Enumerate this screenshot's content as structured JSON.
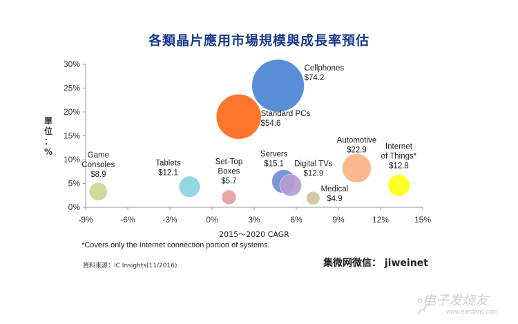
{
  "title": "各類晶片應用市場規模與成長率預估",
  "ylabel_chars": [
    "單",
    "位",
    "：",
    "%"
  ],
  "footnote": "*Covers only the Internet connection portion of systems.",
  "source": "資料來源：IC Insights(11/2016)",
  "wechat": "集微网微信： jiweinet",
  "watermark": {
    "text": "电子发烧友",
    "url": "www.elecfans.com"
  },
  "chart_data": {
    "type": "bubble",
    "title": "各類晶片應用市場規模與成長率預估",
    "xlabel": "2015～2020 CAGR",
    "ylabel": "單位：%",
    "xlim": [
      -9,
      15
    ],
    "ylim": [
      0,
      30
    ],
    "x_ticks": [
      "-9%",
      "-6%",
      "-3%",
      "0%",
      "3%",
      "6%",
      "9%",
      "12%",
      "15%"
    ],
    "y_ticks": [
      "0%",
      "5%",
      "10%",
      "15%",
      "20%",
      "25%",
      "30%"
    ],
    "grid": false,
    "bubble_size_unit": "market size ($B)",
    "points": [
      {
        "label_lines": [
          "Cellphones",
          "$74.2"
        ],
        "x": 4.7,
        "y": 25.5,
        "size": 74.2,
        "color": "#4a86d4"
      },
      {
        "label_lines": [
          "Standard PCs",
          "$54.6"
        ],
        "x": 1.9,
        "y": 19.0,
        "size": 54.6,
        "color": "#ff6a1a"
      },
      {
        "label_lines": [
          "Automotive",
          "$22.9"
        ],
        "x": 10.3,
        "y": 8.2,
        "size": 22.9,
        "color": "#fbb484"
      },
      {
        "label_lines": [
          "Servers",
          "$15.1"
        ],
        "x": 5.1,
        "y": 5.4,
        "size": 15.1,
        "color": "#6f8ed2"
      },
      {
        "label_lines": [
          "Digital TVs",
          "$12.9"
        ],
        "x": 5.6,
        "y": 4.6,
        "size": 12.9,
        "color": "#b79bd6"
      },
      {
        "label_lines": [
          "Internet",
          "of Things*",
          "$12.8"
        ],
        "x": 13.3,
        "y": 4.6,
        "size": 12.8,
        "color": "#ffff14"
      },
      {
        "label_lines": [
          "Tablets",
          "$12.1"
        ],
        "x": -1.6,
        "y": 4.3,
        "size": 12.1,
        "color": "#8cd3e0"
      },
      {
        "label_lines": [
          "Game",
          "Consoles",
          "$8.9"
        ],
        "x": -8.1,
        "y": 3.3,
        "size": 8.9,
        "color": "#c8d896"
      },
      {
        "label_lines": [
          "Set-Top",
          "Boxes",
          "$5.7"
        ],
        "x": 1.2,
        "y": 2.1,
        "size": 5.7,
        "color": "#e99d9d"
      },
      {
        "label_lines": [
          "Medical",
          "$4.9"
        ],
        "x": 7.2,
        "y": 1.9,
        "size": 4.9,
        "color": "#cec79c"
      }
    ]
  }
}
